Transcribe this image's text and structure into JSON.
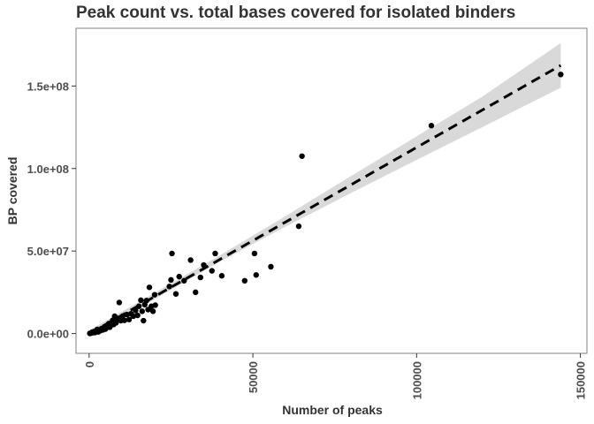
{
  "chart_data": {
    "type": "scatter",
    "title": "Peak count vs. total bases covered for isolated binders",
    "xlabel": "Number of peaks",
    "ylabel": "BP covered",
    "xlim": [
      -4000,
      152000
    ],
    "ylim": [
      -12000000,
      185000000
    ],
    "x_ticks": [
      0,
      50000,
      100000,
      150000
    ],
    "x_tick_labels": [
      "0",
      "50000",
      "100000",
      "150000"
    ],
    "y_ticks": [
      0,
      50000000,
      100000000,
      150000000
    ],
    "y_tick_labels": [
      "0.0e+00",
      "5.0e+07",
      "1.0e+08",
      "1.5e+08"
    ],
    "grid": false,
    "fit": {
      "style": "dashed",
      "x": [
        0,
        144000
      ],
      "y": [
        -200000,
        162500000
      ],
      "ci_x": [
        0,
        20000,
        40000,
        60000,
        80000,
        100000,
        120000,
        144000
      ],
      "ci_lower": [
        -2500000,
        20800000,
        43600000,
        64800000,
        85200000,
        105200000,
        125000000,
        149000000
      ],
      "ci_upper": [
        2000000,
        24600000,
        47500000,
        71200000,
        95500000,
        119500000,
        143500000,
        176000000
      ]
    },
    "points": [
      {
        "x": 200,
        "y": 100000
      },
      {
        "x": 600,
        "y": 300000
      },
      {
        "x": 900,
        "y": 800000
      },
      {
        "x": 1200,
        "y": 500000
      },
      {
        "x": 1500,
        "y": 1200000
      },
      {
        "x": 1800,
        "y": 600000
      },
      {
        "x": 2200,
        "y": 1500000
      },
      {
        "x": 2500,
        "y": 2500000
      },
      {
        "x": 2800,
        "y": 1000000
      },
      {
        "x": 3200,
        "y": 2000000
      },
      {
        "x": 3500,
        "y": 1800000
      },
      {
        "x": 3800,
        "y": 3000000
      },
      {
        "x": 4200,
        "y": 2200000
      },
      {
        "x": 4600,
        "y": 3800000
      },
      {
        "x": 5000,
        "y": 2700000
      },
      {
        "x": 5500,
        "y": 4500000
      },
      {
        "x": 6000,
        "y": 6000000
      },
      {
        "x": 6300,
        "y": 3800000
      },
      {
        "x": 6800,
        "y": 5200000
      },
      {
        "x": 7200,
        "y": 8000000
      },
      {
        "x": 7500,
        "y": 5500000
      },
      {
        "x": 7800,
        "y": 10500000
      },
      {
        "x": 8200,
        "y": 6500000
      },
      {
        "x": 8600,
        "y": 9200000
      },
      {
        "x": 9200,
        "y": 18800000
      },
      {
        "x": 9700,
        "y": 7800000
      },
      {
        "x": 10200,
        "y": 10500000
      },
      {
        "x": 10800,
        "y": 8000000
      },
      {
        "x": 11500,
        "y": 11500000
      },
      {
        "x": 12200,
        "y": 8500000
      },
      {
        "x": 12800,
        "y": 12000000
      },
      {
        "x": 13500,
        "y": 10500000
      },
      {
        "x": 14200,
        "y": 14000000
      },
      {
        "x": 14800,
        "y": 11000000
      },
      {
        "x": 15200,
        "y": 16500000
      },
      {
        "x": 15800,
        "y": 20200000
      },
      {
        "x": 16200,
        "y": 13500000
      },
      {
        "x": 16600,
        "y": 7800000
      },
      {
        "x": 17000,
        "y": 17500000
      },
      {
        "x": 17500,
        "y": 20000000
      },
      {
        "x": 18000,
        "y": 14500000
      },
      {
        "x": 18400,
        "y": 28000000
      },
      {
        "x": 19000,
        "y": 16500000
      },
      {
        "x": 19500,
        "y": 13500000
      },
      {
        "x": 20000,
        "y": 23500000
      },
      {
        "x": 20200,
        "y": 17200000
      },
      {
        "x": 24500,
        "y": 28500000
      },
      {
        "x": 25000,
        "y": 32500000
      },
      {
        "x": 25300,
        "y": 48500000
      },
      {
        "x": 26500,
        "y": 24000000
      },
      {
        "x": 27500,
        "y": 34500000
      },
      {
        "x": 29000,
        "y": 32000000
      },
      {
        "x": 31000,
        "y": 44500000
      },
      {
        "x": 32500,
        "y": 25000000
      },
      {
        "x": 34000,
        "y": 34000000
      },
      {
        "x": 35000,
        "y": 41500000
      },
      {
        "x": 37500,
        "y": 38000000
      },
      {
        "x": 38500,
        "y": 48500000
      },
      {
        "x": 40500,
        "y": 35000000
      },
      {
        "x": 47500,
        "y": 32000000
      },
      {
        "x": 50500,
        "y": 48500000
      },
      {
        "x": 51000,
        "y": 35500000
      },
      {
        "x": 55500,
        "y": 40500000
      },
      {
        "x": 64000,
        "y": 65000000
      },
      {
        "x": 65000,
        "y": 107500000
      },
      {
        "x": 104500,
        "y": 126000000
      },
      {
        "x": 144000,
        "y": 157000000
      }
    ],
    "colors": {
      "points": "#000000",
      "fit_line": "#000000",
      "ci_band": "#d9d9d9",
      "panel_border": "#7f7f7f",
      "text": "#333333",
      "tick_text": "#4d4d4d"
    }
  }
}
